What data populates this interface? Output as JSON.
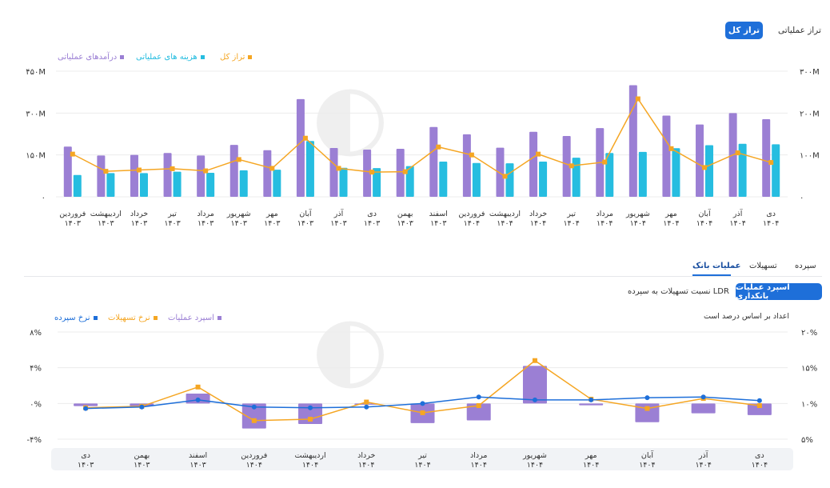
{
  "top_tabs": {
    "active": "تراز کل",
    "other": "تراز عملیاتی"
  },
  "top_legend": {
    "revenue": "درآمدهای عملیاتی",
    "cost": "هزینه های عملیاتی",
    "balance": "تراز کل"
  },
  "colors": {
    "revenue": "#9b7fd4",
    "cost": "#26bde0",
    "balance": "#f5a623",
    "deposit_rate": "#1e6fd9",
    "spread": "#9b7fd4",
    "loan_rate": "#f5a623",
    "accent": "#1e6fd9"
  },
  "section_tabs": [
    "عملیات بانک",
    "تسهیلات",
    "سپرده"
  ],
  "section_active": "عملیات بانک",
  "bank_buttons": {
    "active": "اسپرد عملیات بانکداری",
    "other": "نسبت تسهیلات به سپرده LDR"
  },
  "bottom_note": "اعداد بر اساس درصد است",
  "bottom_legend": {
    "spread": "اسپرد عملیات",
    "loan_rate": "نرخ تسهیلات",
    "deposit_rate": "نرخ سپرده"
  },
  "chart_data": [
    {
      "type": "bar",
      "categories": [
        "فروردین ۱۴۰۳",
        "اردیبهشت ۱۴۰۳",
        "خرداد ۱۴۰۳",
        "تیر ۱۴۰۳",
        "مرداد ۱۴۰۳",
        "شهریور ۱۴۰۳",
        "مهر ۱۴۰۳",
        "آبان ۱۴۰۳",
        "آذر ۱۴۰۳",
        "دی ۱۴۰۳",
        "بهمن ۱۴۰۳",
        "اسفند ۱۴۰۳",
        "فروردین ۱۴۰۴",
        "اردیبهشت ۱۴۰۴",
        "خرداد ۱۴۰۴",
        "تیر ۱۴۰۴",
        "مرداد ۱۴۰۴",
        "شهریور ۱۴۰۴",
        "مهر ۱۴۰۴",
        "آبان ۱۴۰۴",
        "آذر ۱۴۰۴",
        "دی ۱۴۰۴"
      ],
      "series": [
        {
          "name": "درآمدهای عملیاتی",
          "axis": "left",
          "kind": "bar",
          "values": [
            180,
            148,
            150,
            157,
            148,
            186,
            167,
            350,
            175,
            169,
            172,
            250,
            224,
            176,
            233,
            218,
            246,
            400,
            291,
            259,
            300,
            278
          ]
        },
        {
          "name": "هزینه های عملیاتی",
          "axis": "left",
          "kind": "bar",
          "values": [
            78,
            85,
            85,
            90,
            86,
            95,
            97,
            200,
            104,
            103,
            110,
            126,
            121,
            120,
            126,
            140,
            157,
            161,
            174,
            185,
            190,
            188
          ]
        },
        {
          "name": "تراز کل",
          "axis": "right",
          "kind": "line",
          "values": [
            102,
            61,
            64,
            67,
            62,
            89,
            68,
            140,
            68,
            59,
            60,
            119,
            100,
            49,
            102,
            74,
            83,
            234,
            115,
            70,
            105,
            82
          ]
        }
      ],
      "y_left": {
        "min": 0,
        "max": 450,
        "ticks": [
          0,
          150,
          300,
          450
        ],
        "tick_labels": [
          "۰",
          "۱۵۰M",
          "۳۰۰M",
          "۴۵۰M"
        ]
      },
      "y_right": {
        "min": 0,
        "max": 300,
        "ticks": [
          0,
          100,
          200,
          300
        ],
        "tick_labels": [
          "۰",
          "۱۰۰M",
          "۲۰۰M",
          "۳۰۰M"
        ]
      },
      "grid": true
    },
    {
      "type": "bar",
      "categories": [
        "دی ۱۴۰۳",
        "بهمن ۱۴۰۳",
        "اسفند ۱۴۰۳",
        "فروردین ۱۴۰۴",
        "اردیبهشت ۱۴۰۴",
        "خرداد ۱۴۰۴",
        "تیر ۱۴۰۴",
        "مرداد ۱۴۰۴",
        "شهریور ۱۴۰۴",
        "مهر ۱۴۰۴",
        "آبان ۱۴۰۴",
        "آذر ۱۴۰۴",
        "دی ۱۴۰۴"
      ],
      "series": [
        {
          "name": "اسپرد عملیات",
          "axis": "left",
          "kind": "bar",
          "values": [
            -0.3,
            -0.3,
            1.1,
            -2.8,
            -2.3,
            0.0,
            -2.2,
            -1.9,
            4.2,
            -0.2,
            -2.1,
            -1.1,
            -1.3
          ]
        },
        {
          "name": "نرخ تسهیلات",
          "axis": "right",
          "kind": "line",
          "values": [
            9.4,
            9.6,
            12.3,
            7.6,
            7.8,
            10.2,
            8.7,
            9.7,
            16.0,
            10.6,
            9.3,
            10.7,
            9.7
          ]
        },
        {
          "name": "نرخ سپرده",
          "axis": "right",
          "kind": "line",
          "values": [
            9.3,
            9.5,
            10.5,
            9.5,
            9.4,
            9.5,
            10.0,
            10.9,
            10.5,
            10.5,
            10.8,
            10.9,
            10.4
          ]
        }
      ],
      "y_left": {
        "min": -4,
        "max": 8,
        "ticks": [
          -4,
          0,
          4,
          8
        ],
        "tick_labels": [
          "-۴%",
          "۰%",
          "۴%",
          "۸%"
        ]
      },
      "y_right": {
        "min": 5,
        "max": 20,
        "ticks": [
          5,
          10,
          15,
          20
        ],
        "tick_labels": [
          "۵%",
          "۱۰%",
          "۱۵%",
          "۲۰%"
        ]
      },
      "grid": true
    }
  ]
}
